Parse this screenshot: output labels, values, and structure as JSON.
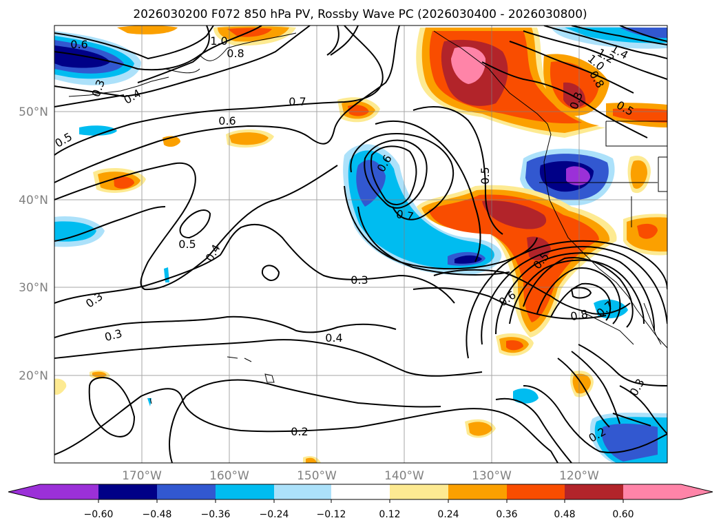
{
  "map": {
    "title": "2026030200 F072 850 hPa PV, Rossby Wave PC (2026030400 - 2026030800)",
    "lat_labels": [
      "50°N",
      "40°N",
      "30°N",
      "20°N"
    ],
    "lon_labels": [
      "170°W",
      "160°W",
      "150°W",
      "140°W",
      "130°W",
      "120°W"
    ],
    "contour_labels": [
      "0.6",
      "1.0",
      "0.8",
      "0.3",
      "0.4",
      "0.5",
      "0.7",
      "0.6",
      "1.4",
      "1.2",
      "1.0",
      "0.8",
      "0.5",
      "0.3",
      "0.6",
      "0.5",
      "0.7",
      "0.5",
      "0.4",
      "0.3",
      "0.3",
      "0.3",
      "0.4",
      "0.5",
      "0.6",
      "0.8",
      "0.7",
      "0.2",
      "0.3",
      "0.2"
    ],
    "colors": {
      "n060": "#9b30d8",
      "n048": "#000087",
      "n036": "#3258d0",
      "n024": "#00bcf0",
      "n012": "#ace1fa",
      "zero": "#ffffff",
      "p012": "#fdea92",
      "p024": "#fba000",
      "p036": "#f94d00",
      "p048": "#b2242a",
      "p060": "#ff84a8"
    }
  },
  "colorbar": {
    "ticks": [
      "−0.60",
      "−0.48",
      "−0.36",
      "−0.24",
      "−0.12",
      "0.12",
      "0.24",
      "0.36",
      "0.48",
      "0.60"
    ]
  }
}
